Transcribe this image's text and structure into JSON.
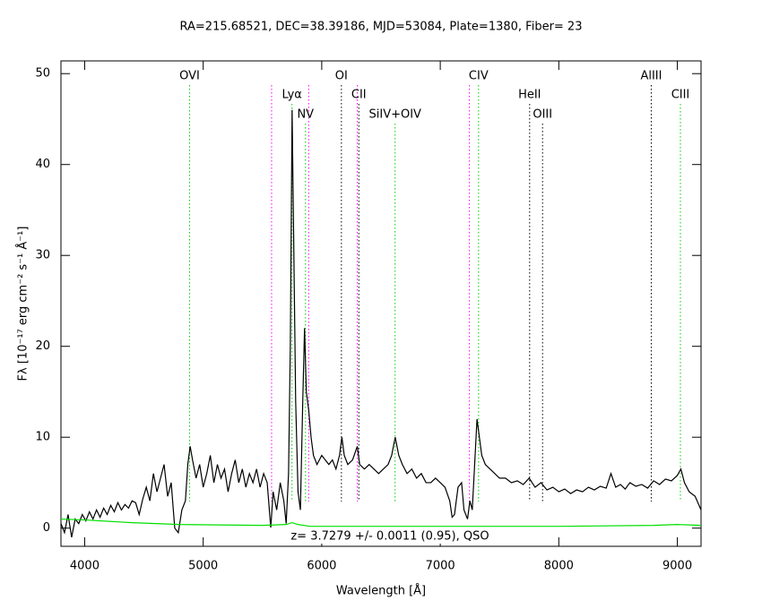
{
  "chart_data": {
    "type": "line",
    "title": "RA=215.68521, DEC=38.39186, MJD=53084, Plate=1380, Fiber= 23",
    "xlabel": "Wavelength [Å]",
    "ylabel": "Fλ [10⁻¹⁷ erg cm⁻² s⁻¹ Å⁻¹]",
    "annotation": "z= 3.7279 +/- 0.0011 (0.95), QSO",
    "xlim": [
      3800,
      9200
    ],
    "ylim": [
      -2,
      51.4
    ],
    "xticks": [
      4000,
      5000,
      6000,
      7000,
      8000,
      9000
    ],
    "yticks": [
      0,
      10,
      20,
      30,
      40,
      50
    ],
    "series": [
      {
        "color": "#000000",
        "x": [
          3800,
          3830,
          3860,
          3890,
          3920,
          3950,
          3980,
          4010,
          4040,
          4070,
          4100,
          4130,
          4160,
          4190,
          4220,
          4250,
          4280,
          4310,
          4340,
          4370,
          4400,
          4430,
          4460,
          4490,
          4520,
          4550,
          4580,
          4610,
          4640,
          4670,
          4700,
          4730,
          4760,
          4790,
          4820,
          4850,
          4870,
          4890,
          4910,
          4940,
          4970,
          5000,
          5030,
          5060,
          5090,
          5120,
          5150,
          5180,
          5210,
          5240,
          5270,
          5300,
          5330,
          5360,
          5390,
          5420,
          5450,
          5480,
          5510,
          5540,
          5570,
          5590,
          5620,
          5650,
          5680,
          5700,
          5720,
          5735,
          5750,
          5765,
          5780,
          5800,
          5820,
          5840,
          5855,
          5870,
          5890,
          5910,
          5930,
          5960,
          6000,
          6030,
          6060,
          6090,
          6120,
          6150,
          6170,
          6190,
          6220,
          6260,
          6300,
          6320,
          6360,
          6400,
          6440,
          6480,
          6520,
          6560,
          6590,
          6620,
          6650,
          6680,
          6720,
          6760,
          6800,
          6840,
          6880,
          6920,
          6960,
          7000,
          7040,
          7080,
          7100,
          7120,
          7150,
          7180,
          7200,
          7230,
          7250,
          7270,
          7290,
          7310,
          7330,
          7350,
          7380,
          7420,
          7460,
          7500,
          7550,
          7600,
          7650,
          7700,
          7750,
          7800,
          7850,
          7900,
          7950,
          8000,
          8050,
          8100,
          8150,
          8200,
          8250,
          8300,
          8350,
          8400,
          8440,
          8480,
          8520,
          8560,
          8600,
          8650,
          8700,
          8750,
          8800,
          8850,
          8900,
          8950,
          9000,
          9030,
          9060,
          9100,
          9150,
          9200
        ],
        "values": [
          0.5,
          -0.5,
          1.5,
          -1,
          1,
          0.5,
          1.5,
          0.8,
          1.8,
          1,
          2,
          1.2,
          2.2,
          1.5,
          2.5,
          1.8,
          2.8,
          2,
          2.6,
          2.2,
          3,
          2.8,
          1.5,
          3.2,
          4.5,
          3,
          6,
          4,
          5.5,
          7,
          3.5,
          5,
          0,
          -0.5,
          2,
          3,
          7,
          9,
          7.5,
          5.5,
          7,
          4.5,
          6,
          8,
          5,
          7,
          5.5,
          6.5,
          4,
          6,
          7.5,
          5,
          6.5,
          4.5,
          6,
          5,
          6.5,
          4.5,
          6,
          5,
          0,
          4,
          2,
          5,
          3,
          0.5,
          6,
          20,
          46,
          30,
          14,
          4,
          2,
          14,
          22,
          15,
          13,
          10,
          8,
          7,
          8,
          7.5,
          7,
          7.5,
          6.5,
          8,
          10,
          8,
          7,
          7.5,
          9,
          7,
          6.5,
          7,
          6.5,
          6,
          6.5,
          7,
          8,
          10,
          8,
          7,
          6,
          6.5,
          5.5,
          6,
          5,
          5,
          5.5,
          5,
          4.5,
          3,
          1.2,
          1.5,
          4.5,
          5,
          2,
          1,
          3,
          2,
          7,
          12,
          10,
          8,
          7,
          6.5,
          6,
          5.5,
          5.5,
          5,
          5.2,
          4.8,
          5.5,
          4.5,
          5,
          4.2,
          4.5,
          4,
          4.3,
          3.8,
          4.2,
          4,
          4.5,
          4.2,
          4.6,
          4.4,
          6,
          4.5,
          4.8,
          4.3,
          5,
          4.6,
          4.8,
          4.4,
          5.2,
          4.8,
          5.4,
          5.2,
          5.8,
          6.5,
          5,
          4,
          3.5,
          2
        ]
      },
      {
        "color": "#00e000",
        "x": [
          3800,
          4000,
          4400,
          4800,
          5500,
          5700,
          5750,
          5800,
          5900,
          7000,
          8000,
          8800,
          9000,
          9200
        ],
        "values": [
          1,
          0.9,
          0.6,
          0.4,
          0.3,
          0.4,
          0.6,
          0.4,
          0.2,
          0.2,
          0.2,
          0.3,
          0.4,
          0.3
        ]
      }
    ],
    "lines": [
      {
        "label": "OVI",
        "wavelength": 4885,
        "color": "#00d000"
      },
      {
        "label": "Lyα",
        "wavelength": 5749,
        "color": "#00d000"
      },
      {
        "label": "NV",
        "wavelength": 5863,
        "color": "#00d000"
      },
      {
        "label": "OI",
        "wavelength": 6166,
        "color": "#000000"
      },
      {
        "label": "CII",
        "wavelength": 6313,
        "color": "#000000"
      },
      {
        "label": "SiIV+OIV",
        "wavelength": 6619,
        "color": "#00d000"
      },
      {
        "label": "CIV",
        "wavelength": 7323,
        "color": "#00d000"
      },
      {
        "label": "HeII",
        "wavelength": 7754,
        "color": "#000000"
      },
      {
        "label": "OIII",
        "wavelength": 7863,
        "color": "#000000"
      },
      {
        "label": "AlIII",
        "wavelength": 8780,
        "color": "#000000"
      },
      {
        "label": "CIII",
        "wavelength": 9026,
        "color": "#00d000"
      }
    ],
    "sky_lines": {
      "color": "#ff00ff",
      "wavelengths": [
        5577,
        5890,
        6300,
        7246
      ]
    }
  }
}
